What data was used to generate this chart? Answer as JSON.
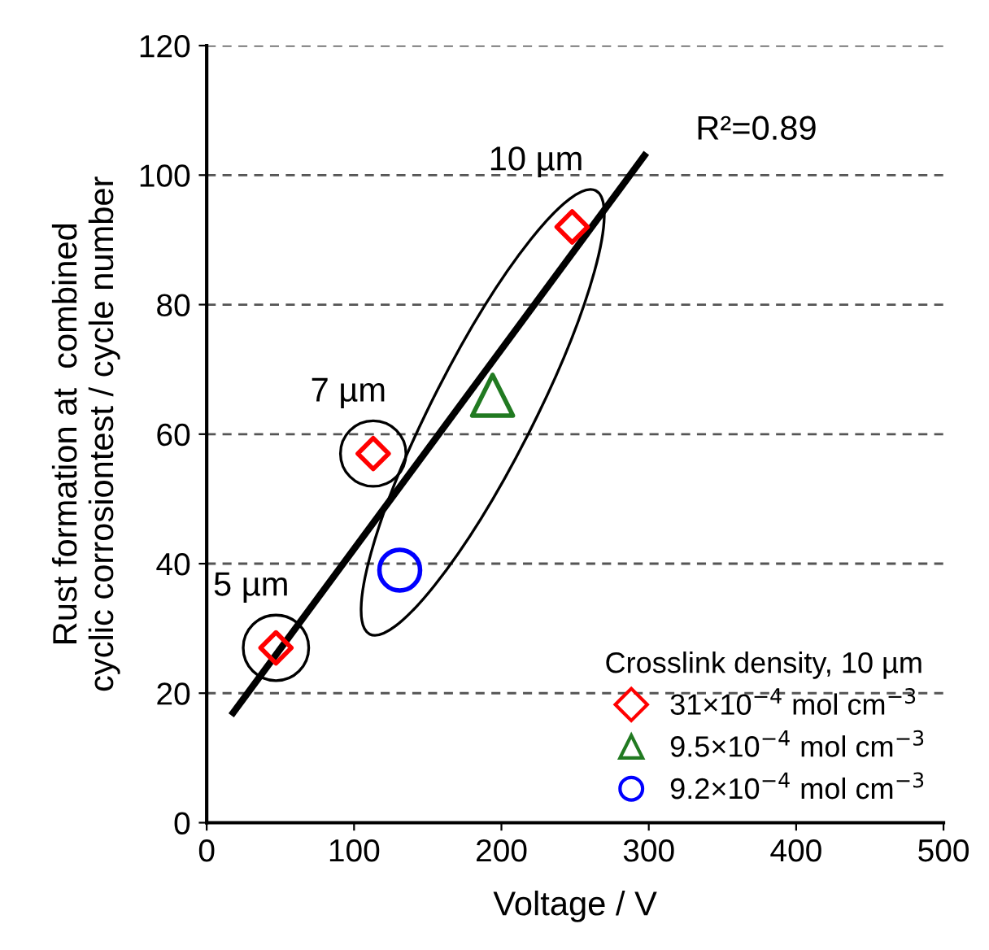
{
  "chart_data": {
    "type": "scatter",
    "xlabel": "Voltage / V",
    "ylabel": "Rust formation at  combined\ncyclic corrosiontest / cycle number",
    "legend_title": "Crosslink density, 10 µm",
    "series": [
      {
        "name": "31×10$^{−4}$ mol cm$^{−3}$",
        "color": "#ff0000",
        "marker": "diamond",
        "x": [
          47,
          113,
          248
        ],
        "values": [
          27,
          57,
          92
        ]
      },
      {
        "name": "9.5×10$^{−4}$ mol cm$^{−3}$",
        "color": "#217a21",
        "marker": "triangle",
        "x": [
          194
        ],
        "values": [
          66
        ]
      },
      {
        "name": "9.2×10$^{−4}$ mol cm$^{−3}$",
        "color": "#0000ff",
        "marker": "circle",
        "x": [
          131
        ],
        "values": [
          39
        ]
      },
      {
        "type": "line",
        "color": "#000000",
        "marker": "none",
        "x": [
          18,
          297
        ],
        "values": [
          17,
          103
        ]
      }
    ],
    "annotations": [
      {
        "text": "5 µm",
        "x": 47,
        "y": 27
      },
      {
        "text": "7 µm",
        "x": 113,
        "y": 57
      },
      {
        "text": "10 µm",
        "x": 248,
        "y": 92
      },
      "R²=0.89"
    ],
    "xlim": [
      0,
      500
    ],
    "xticks": [
      0,
      100,
      200,
      300,
      400,
      500
    ],
    "ylim": [
      0,
      120
    ],
    "yticks": [
      0,
      20,
      40,
      60,
      80,
      100,
      120
    ],
    "grid": "y",
    "legend": "bottom right"
  }
}
